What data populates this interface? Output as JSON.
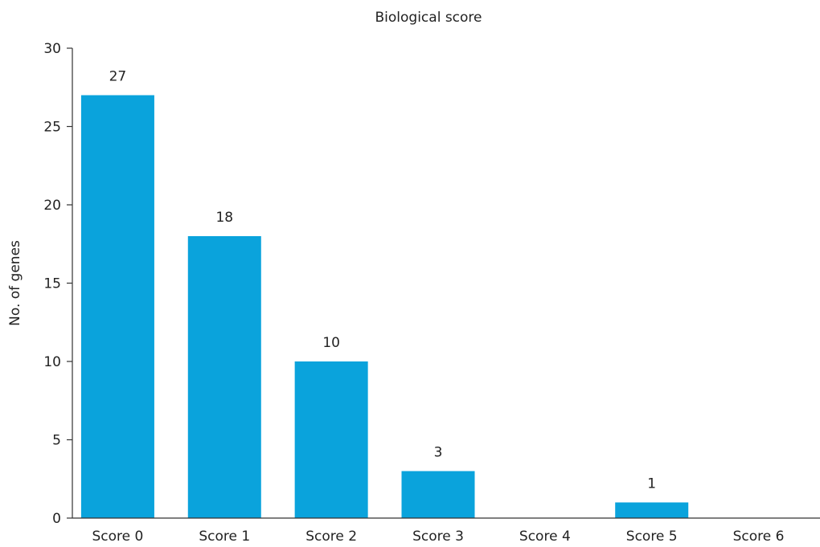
{
  "chart_data": {
    "type": "bar",
    "title": "Biological score",
    "xlabel": "",
    "ylabel": "No. of genes",
    "categories": [
      "Score 0",
      "Score 1",
      "Score 2",
      "Score 3",
      "Score 4",
      "Score 5",
      "Score 6"
    ],
    "values": [
      27,
      18,
      10,
      3,
      0,
      1,
      0
    ],
    "data_labels": [
      "27",
      "18",
      "10",
      "3",
      "",
      "1",
      ""
    ],
    "ylim": [
      0,
      30
    ],
    "yticks": [
      "0",
      "5",
      "10",
      "15",
      "20",
      "25",
      "30"
    ],
    "grid": false,
    "legend": "none",
    "bar_color": "#0aa3dc"
  }
}
